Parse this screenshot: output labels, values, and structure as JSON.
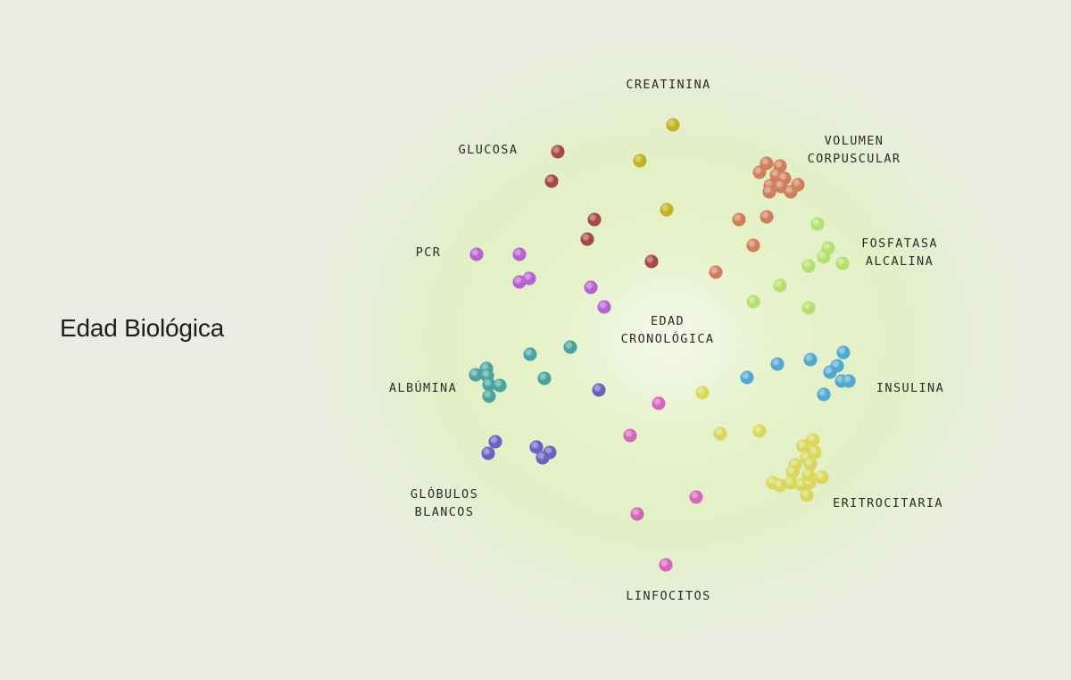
{
  "page": {
    "title": "Edad Biológica"
  },
  "diagram": {
    "center": {
      "lines": [
        "EDAD",
        "CRONOLÓGICA"
      ]
    },
    "clusters": [
      {
        "id": "creatinina",
        "lines": [
          "CREATININA"
        ],
        "color": "#c0b322"
      },
      {
        "id": "glucosa",
        "lines": [
          "GLUCOSA"
        ],
        "color": "#a54848"
      },
      {
        "id": "volumen",
        "lines": [
          "VOLUMEN",
          "CORPUSCULAR"
        ],
        "color": "#d07e5b"
      },
      {
        "id": "fosfatasa",
        "lines": [
          "FOSFATASA",
          "ALCALINA"
        ],
        "color": "#b3e06e"
      },
      {
        "id": "pcr",
        "lines": [
          "PCR"
        ],
        "color": "#b762d2"
      },
      {
        "id": "albumina",
        "lines": [
          "ALBÚMINA"
        ],
        "color": "#4ba3a0"
      },
      {
        "id": "insulina",
        "lines": [
          "INSULINA"
        ],
        "color": "#52a9cf"
      },
      {
        "id": "globulos",
        "lines": [
          "GLÓBULOS",
          "BLANCOS"
        ],
        "color": "#6a62c0"
      },
      {
        "id": "eritrocitaria",
        "lines": [
          "ERITROCITARIA"
        ],
        "color": "#d9d75c"
      },
      {
        "id": "linfocitos",
        "lines": [
          "LINFOCITOS"
        ],
        "color": "#d467b8"
      }
    ]
  }
}
